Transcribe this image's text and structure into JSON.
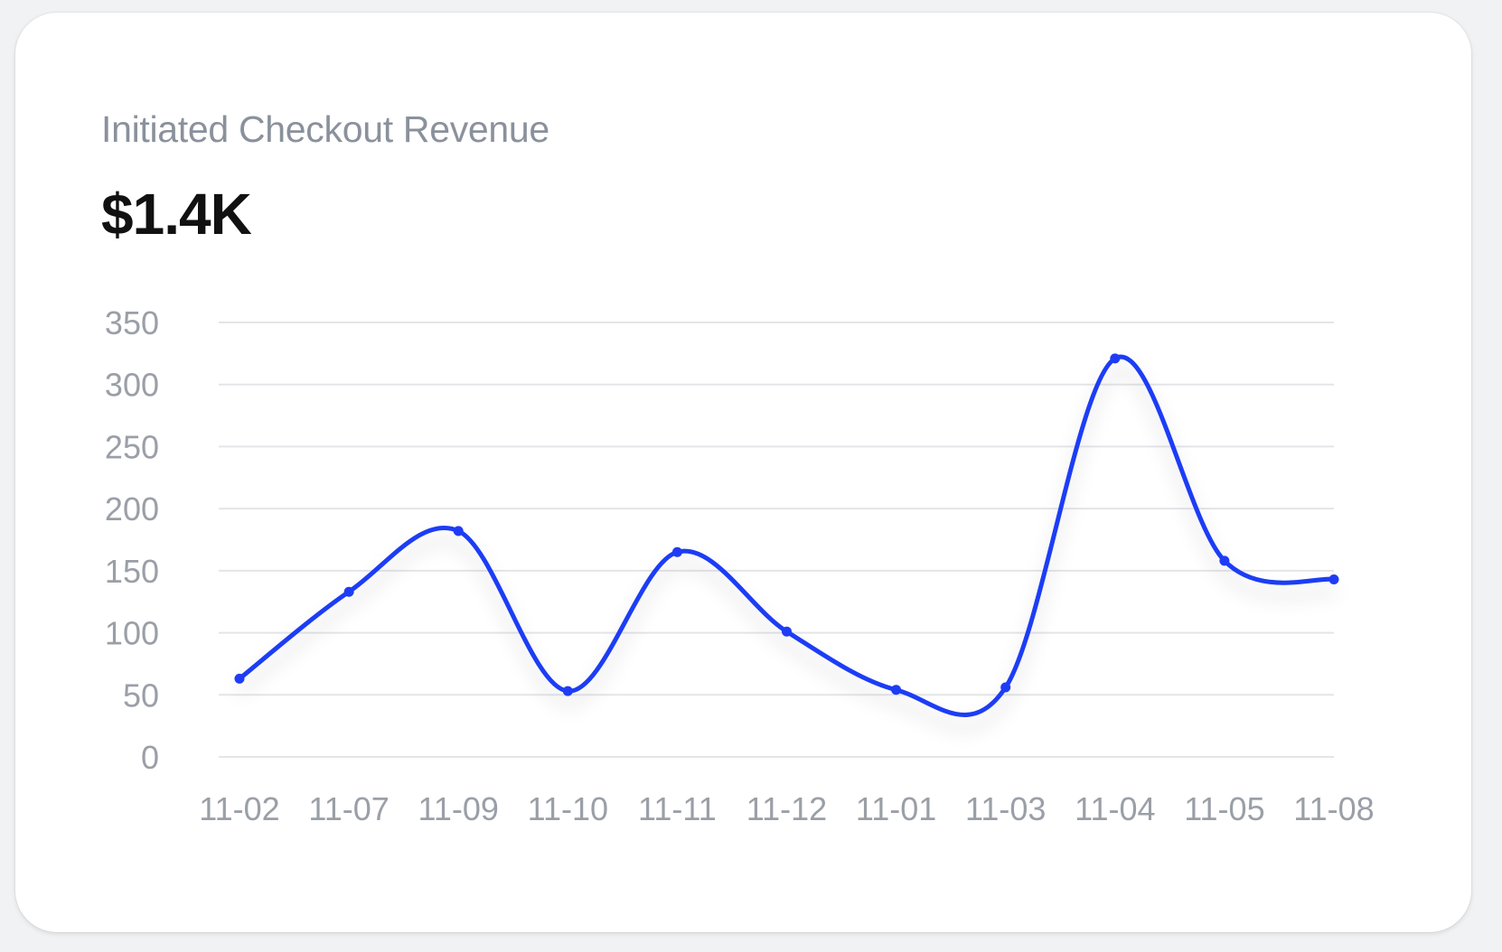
{
  "card": {
    "title": "Initiated Checkout Revenue",
    "value": "$1.4K"
  },
  "colors": {
    "line": "#1f3cf5",
    "grid": "#e3e5e8",
    "tick": "#9a9fa7",
    "title": "#8a919c",
    "value": "#111111"
  },
  "chart_data": {
    "type": "line",
    "title": "",
    "xlabel": "",
    "ylabel": "",
    "categories": [
      "11-02",
      "11-07",
      "11-09",
      "11-10",
      "11-11",
      "11-12",
      "11-01",
      "11-03",
      "11-04",
      "11-05",
      "11-08"
    ],
    "series": [
      {
        "values": [
          63,
          133,
          182,
          53,
          165,
          101,
          54,
          56,
          321,
          158,
          143
        ]
      }
    ],
    "ylim": [
      0,
      350
    ],
    "yticks": [
      0,
      50,
      100,
      150,
      200,
      250,
      300,
      350
    ],
    "grid": true,
    "smooth": true,
    "markers": true,
    "legend": "none"
  }
}
